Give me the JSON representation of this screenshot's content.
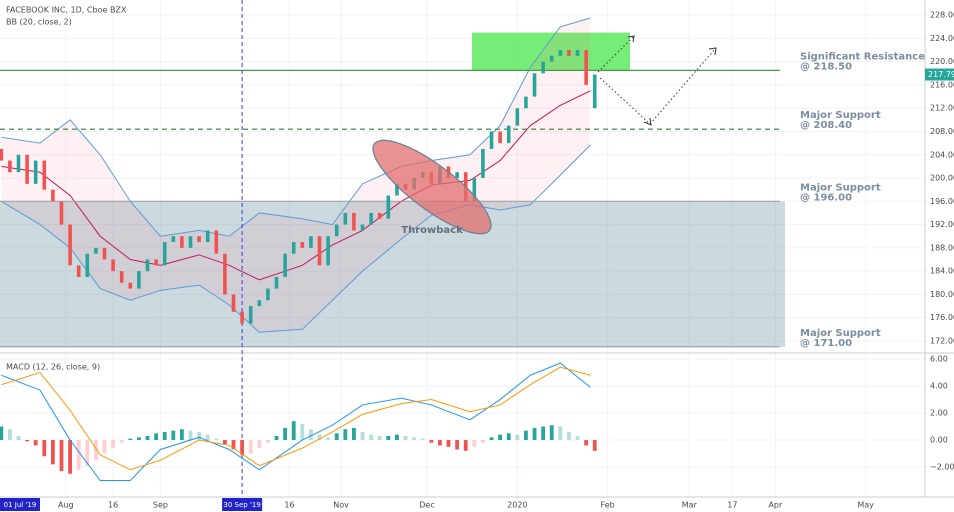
{
  "chart_data": {
    "type": "candlestick",
    "title": "FACEBOOK INC, 1D, Cboe BZX",
    "indicator": "BB (20, close, 2)",
    "x": [
      7,
      9,
      11,
      13,
      15,
      17,
      19,
      21,
      23,
      25,
      27,
      29,
      31,
      33,
      35,
      37,
      39,
      41,
      43,
      45,
      47,
      49,
      51,
      53,
      55,
      57,
      59,
      61,
      63,
      65,
      67,
      69,
      71,
      73,
      75,
      77,
      79,
      81,
      83,
      85,
      87,
      89,
      91,
      93,
      95,
      97,
      99,
      101,
      103,
      105,
      107,
      109,
      111,
      113,
      115,
      117,
      119,
      121,
      123,
      125,
      127,
      129,
      131,
      133,
      135,
      137,
      139,
      141,
      143,
      145
    ],
    "open": [
      205,
      203,
      201,
      204,
      199,
      203,
      198,
      196,
      192,
      185,
      183,
      187,
      188,
      186,
      184,
      182,
      181,
      184,
      186,
      185,
      189,
      190,
      188,
      190,
      189,
      191,
      187,
      180,
      177,
      175,
      178,
      179,
      181,
      183,
      187,
      189,
      188,
      190,
      185,
      190,
      192,
      194,
      191,
      192,
      194,
      193,
      197,
      199,
      198,
      200,
      201,
      199,
      202,
      200,
      201,
      196,
      200,
      205,
      208,
      206,
      209,
      212,
      214,
      218,
      220,
      221,
      222,
      221,
      222,
      212
    ],
    "close": [
      203,
      201,
      204,
      199,
      203,
      198,
      196,
      192,
      185,
      183,
      187,
      188,
      186,
      184,
      182,
      181,
      184,
      186,
      185,
      189,
      190,
      188,
      190,
      189,
      191,
      187,
      180,
      177,
      175,
      178,
      179,
      181,
      183,
      187,
      189,
      188,
      190,
      185,
      190,
      192,
      194,
      191,
      192,
      194,
      193,
      197,
      199,
      198,
      200,
      201,
      199,
      202,
      200,
      201,
      196,
      200,
      205,
      208,
      206,
      209,
      212,
      214,
      218,
      220,
      221,
      222,
      221,
      222,
      216,
      217.79
    ],
    "colors": {
      "up": "#26a69a",
      "down": "#ef5350"
    },
    "xlim": [
      6.7,
      221.8
    ],
    "ylim": [
      170.1,
      230.6
    ],
    "yticks": [
      {
        "value": 172,
        "label": "172.00"
      },
      {
        "value": 176,
        "label": "176.00"
      },
      {
        "value": 180,
        "label": "180.00"
      },
      {
        "value": 184,
        "label": "184.00"
      },
      {
        "value": 188,
        "label": "188.00"
      },
      {
        "value": 192,
        "label": "192.00"
      },
      {
        "value": 196,
        "label": "196.00"
      },
      {
        "value": 200,
        "label": "200.00"
      },
      {
        "value": 204,
        "label": "204.00"
      },
      {
        "value": 208,
        "label": "208.00"
      },
      {
        "value": 212,
        "label": "212.00"
      },
      {
        "value": 216,
        "label": "216.00"
      },
      {
        "value": 220,
        "label": "220.00"
      },
      {
        "value": 224,
        "label": "224.00"
      },
      {
        "value": 228,
        "label": "228.00"
      }
    ],
    "xticks": [
      {
        "value": 22,
        "label": "Aug"
      },
      {
        "value": 33,
        "label": "16"
      },
      {
        "value": 44,
        "label": "Sep"
      },
      {
        "value": 74,
        "label": "16"
      },
      {
        "value": 86,
        "label": "Nov"
      },
      {
        "value": 106,
        "label": "Dec"
      },
      {
        "value": 127,
        "label": "2020"
      },
      {
        "value": 148,
        "label": "Feb"
      },
      {
        "value": 167,
        "label": "Mar"
      },
      {
        "value": 177,
        "label": "17"
      },
      {
        "value": 187,
        "label": "Apr"
      },
      {
        "value": 208,
        "label": "May"
      }
    ],
    "start": {
      "value": 0,
      "label": "01 Jul '19"
    },
    "marker": {
      "value": 63,
      "label": "30 Sep '19"
    },
    "bb": {
      "x": [
        7,
        16,
        23,
        30,
        37,
        44,
        53,
        60,
        67,
        77,
        84,
        91,
        100,
        107,
        116,
        123,
        130,
        137,
        144
      ],
      "upper": [
        207,
        206,
        210,
        204,
        196,
        190,
        191,
        190,
        194,
        193,
        192,
        199,
        202,
        203,
        204,
        209,
        219,
        226,
        227.5
      ],
      "middle": [
        202,
        201,
        197,
        190,
        186,
        185,
        186.8,
        185,
        182.5,
        185,
        188.5,
        191,
        196,
        198.8,
        199.6,
        203,
        209,
        212.5,
        215
      ],
      "lower": [
        196,
        192,
        188,
        181,
        179,
        180.7,
        181.6,
        178.2,
        173.5,
        174,
        179,
        184,
        189.5,
        193.6,
        195.4,
        194.5,
        195.4,
        200.5,
        205.7
      ],
      "band_color": "#5b9bd5",
      "middle_color": "#c2185b"
    },
    "zones": [
      {
        "range": [
          171,
          196
        ],
        "color": "rgba(110,145,160,0.35)"
      },
      {
        "range": [
          218.5,
          225
        ],
        "color": "rgba(60,230,60,0.7)"
      }
    ],
    "levels": [
      {
        "value": 218.5,
        "text": [
          "Significant Resistance",
          "@ 218.50"
        ],
        "color": "#43a047"
      },
      {
        "value": 208.4,
        "text": [
          "Major Support",
          "@ 208.40"
        ],
        "color": "#2e7d32",
        "dashed": true
      },
      {
        "value": 196,
        "text": [
          "Major Support",
          "@ 196.00"
        ],
        "color": "#9aa7ad"
      },
      {
        "value": 171,
        "text": [
          "Major Support",
          "@ 171.00"
        ],
        "color": "#9aa7ad"
      }
    ],
    "annotation": "Throwback",
    "macd": {
      "title": "MACD (12, 26, close, 9)",
      "x": [
        7,
        16,
        23,
        30,
        37,
        44,
        53,
        60,
        67,
        77,
        84,
        91,
        100,
        107,
        116,
        123,
        130,
        137,
        144
      ],
      "macd": [
        4.8,
        3.7,
        0,
        -3,
        -3,
        -0.7,
        0.2,
        -0.7,
        -2.2,
        0,
        1.1,
        2.6,
        3.1,
        2.6,
        1.5,
        3.0,
        4.8,
        5.7,
        3.9
      ],
      "signal": [
        4.1,
        5.0,
        2.2,
        -1.1,
        -2.2,
        -1.5,
        0,
        -0.4,
        -1.9,
        -0.6,
        0.6,
        1.9,
        2.7,
        3.0,
        2.1,
        2.6,
        4.1,
        5.4,
        4.8
      ],
      "histogram": [
        1.0,
        0.8,
        0.3,
        -0.1,
        -0.4,
        -1.2,
        -1.8,
        -2.3,
        -2.5,
        -2.2,
        -1.9,
        -1.5,
        -1.0,
        -0.6,
        -0.2,
        0.1,
        0.2,
        0.3,
        0.5,
        0.6,
        0.7,
        0.8,
        0.7,
        0.6,
        0.4,
        0.1,
        -0.3,
        -0.7,
        -1.1,
        -1.0,
        -0.6,
        -0.2,
        0.3,
        0.9,
        1.4,
        1.2,
        0.8,
        0.4,
        0.2,
        0.5,
        0.8,
        0.9,
        0.6,
        0.4,
        0.3,
        0.3,
        0.4,
        0.3,
        0.2,
        0.1,
        -0.2,
        -0.4,
        -0.5,
        -0.7,
        -0.8,
        -0.5,
        -0.2,
        0.2,
        0.4,
        0.5,
        0.4,
        0.7,
        0.9,
        1.0,
        1.1,
        1.0,
        0.6,
        0.3,
        -0.4,
        -0.8
      ],
      "macd_color": "#2196f3",
      "signal_color": "#ff9800",
      "hist_colors": {
        "up_strong": "#26a69a",
        "up_weak": "#b2dfdb",
        "down_strong": "#ef5350",
        "down_weak": "#ffcdd2"
      },
      "ylim": [
        -4.22,
        6.3
      ],
      "yticks": [
        {
          "value": -2,
          "label": "−2.00"
        },
        {
          "value": 0,
          "label": "0.00"
        },
        {
          "value": 2,
          "label": "2.00"
        },
        {
          "value": 4,
          "label": "4.00"
        },
        {
          "value": 6,
          "label": "6.00"
        }
      ]
    }
  }
}
